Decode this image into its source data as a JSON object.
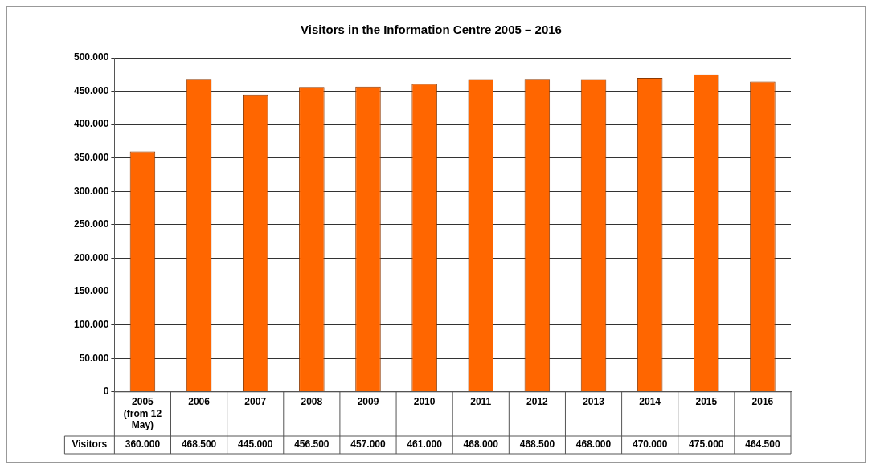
{
  "chart_data": {
    "type": "bar",
    "title": "Visitors in the Information Centre 2005 – 2016",
    "categories": [
      "2005 (from 12 May)",
      "2006",
      "2007",
      "2008",
      "2009",
      "2010",
      "2011",
      "2012",
      "2013",
      "2014",
      "2015",
      "2016"
    ],
    "series": [
      {
        "name": "Visitors",
        "color": "#ff6600",
        "values": [
          360000,
          468500,
          445000,
          456500,
          457000,
          461000,
          468000,
          468500,
          468000,
          470000,
          475000,
          464500
        ],
        "value_labels": [
          "360.000",
          "468.500",
          "445.000",
          "456.500",
          "457.000",
          "461.000",
          "468.000",
          "468.500",
          "468.000",
          "470.000",
          "475.000",
          "464.500"
        ]
      }
    ],
    "ylim": [
      0,
      500000
    ],
    "yticks": [
      0,
      {
        "value": 50000,
        "label": "50.000"
      },
      {
        "value": 100000,
        "label": "100.000"
      },
      {
        "value": 150000,
        "label": "150.000"
      },
      {
        "value": 200000,
        "label": "200.000"
      },
      {
        "value": 250000,
        "label": "250.000"
      },
      {
        "value": 300000,
        "label": "300.000"
      },
      {
        "value": 350000,
        "label": "350.000"
      },
      {
        "value": 400000,
        "label": "400.000"
      },
      {
        "value": 450000,
        "label": "450.000"
      },
      {
        "value": 500000,
        "label": "500.000"
      }
    ],
    "grid": "y",
    "legend": false
  }
}
